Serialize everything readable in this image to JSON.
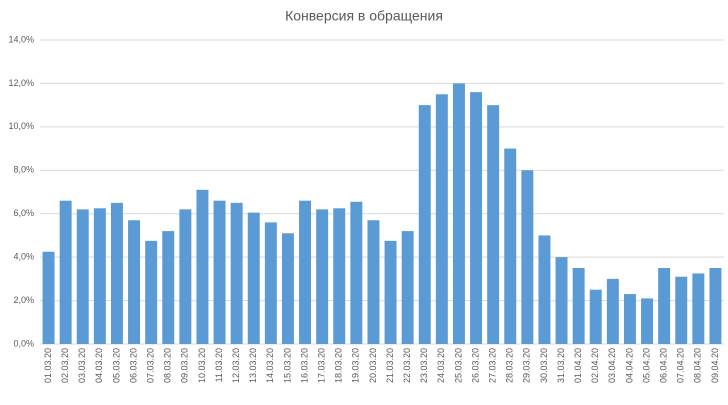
{
  "chart_data": {
    "type": "bar",
    "title": "Конверсия в обращения",
    "categories": [
      "01.03.20",
      "02.03.20",
      "03.03.20",
      "04.03.20",
      "05.03.20",
      "06.03.20",
      "07.03.20",
      "08.03.20",
      "09.03.20",
      "10.03.20",
      "11.03.20",
      "12.03.20",
      "13.03.20",
      "14.03.20",
      "15.03.20",
      "16.03.20",
      "17.03.20",
      "18.03.20",
      "19.03.20",
      "20.03.20",
      "21.03.20",
      "22.03.20",
      "23.03.20",
      "24.03.20",
      "25.03.20",
      "26.03.20",
      "27.03.20",
      "28.03.20",
      "29.03.20",
      "30.03.20",
      "31.03.20",
      "01.04.20",
      "02.04.20",
      "03.04.20",
      "04.04.20",
      "05.04.20",
      "06.04.20",
      "07.04.20",
      "08.04.20",
      "09.04.20"
    ],
    "values": [
      4.25,
      6.6,
      6.2,
      6.25,
      6.5,
      5.7,
      4.75,
      5.2,
      6.2,
      7.1,
      6.6,
      6.5,
      6.05,
      5.6,
      5.1,
      6.6,
      6.2,
      6.25,
      6.55,
      5.7,
      4.75,
      5.2,
      11.0,
      11.5,
      12.0,
      11.6,
      11.0,
      9.0,
      8.0,
      5.0,
      4.0,
      3.5,
      2.5,
      3.0,
      2.3,
      2.1,
      3.5,
      3.1,
      3.25,
      3.5
    ],
    "color": "#5b9bd5",
    "ylim": [
      0,
      14
    ],
    "yticks": [
      {
        "value": 0,
        "label": "0,0%"
      },
      {
        "value": 2,
        "label": "2,0%"
      },
      {
        "value": 4,
        "label": "4,0%"
      },
      {
        "value": 6,
        "label": "6,0%"
      },
      {
        "value": 8,
        "label": "8,0%"
      },
      {
        "value": 10,
        "label": "10,0%"
      },
      {
        "value": 12,
        "label": "12,0%"
      },
      {
        "value": 14,
        "label": "14,0%"
      }
    ],
    "grid": true
  }
}
